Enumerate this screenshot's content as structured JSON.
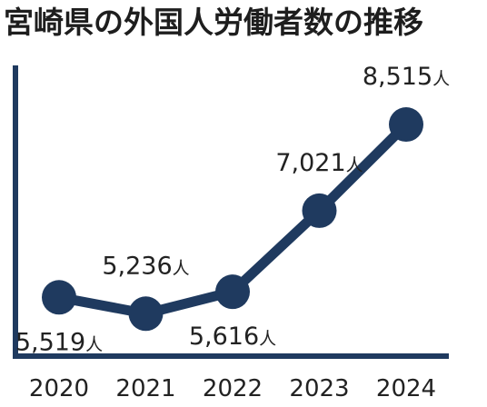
{
  "chart_data": {
    "type": "line",
    "title": "宮崎県の外国人労働者数の推移",
    "categories": [
      "2020",
      "2021",
      "2022",
      "2023",
      "2024"
    ],
    "values": [
      5519,
      5236,
      5616,
      7021,
      8515
    ],
    "value_labels": [
      "5,519",
      "5,236",
      "5,616",
      "7,021",
      "8,515"
    ],
    "unit": "人",
    "xlabel": "",
    "ylabel": "",
    "ylim": [
      4500,
      9000
    ],
    "grid": false,
    "legend": "none",
    "colors": {
      "series": "#1f3a5f",
      "axis": "#1f3a5f",
      "text": "#222222"
    }
  }
}
